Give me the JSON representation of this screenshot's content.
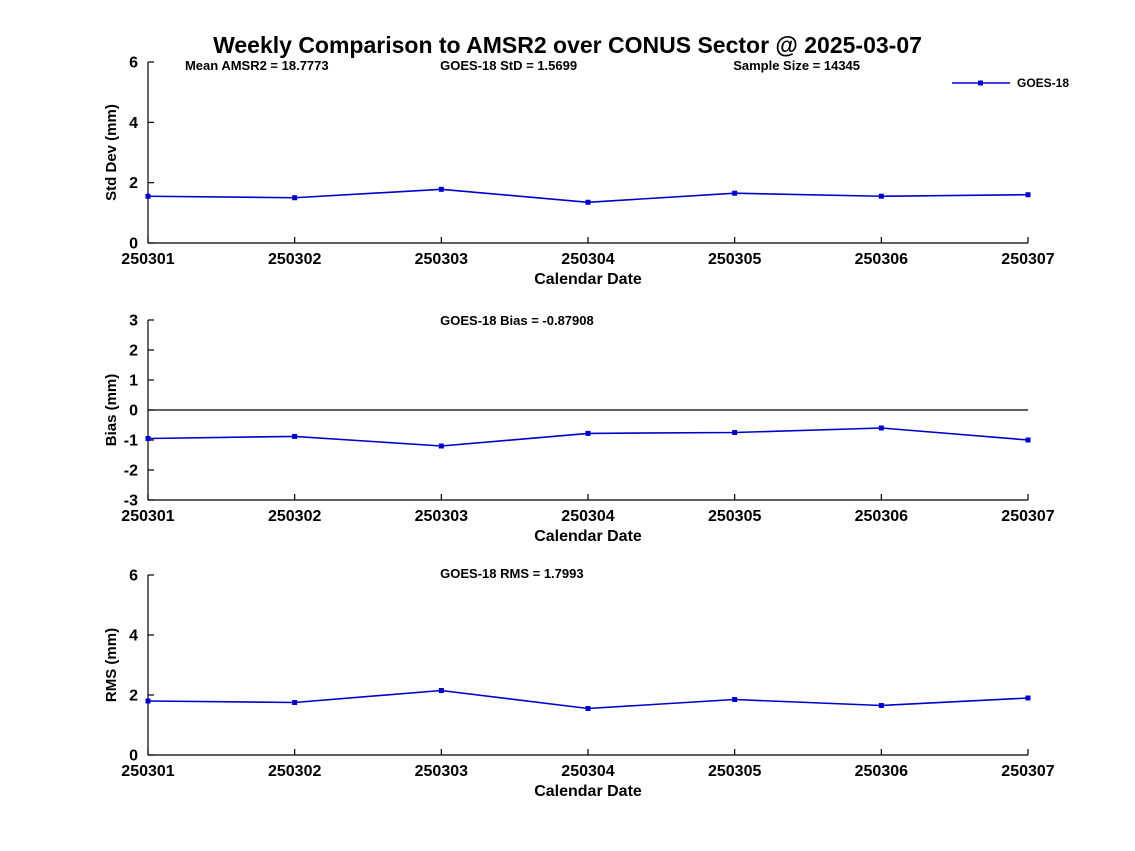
{
  "page_title": "Weekly Comparison to AMSR2 over CONUS Sector @ 2025-03-07",
  "legend": {
    "label": "GOES-18"
  },
  "colors": {
    "series": "#0000cd",
    "axis": "#000000"
  },
  "chart_data": [
    {
      "type": "line",
      "id": "stddev",
      "ylabel": "Std Dev (mm)",
      "xlabel": "Calendar Date",
      "categories": [
        "250301",
        "250302",
        "250303",
        "250304",
        "250305",
        "250306",
        "250307"
      ],
      "series": [
        {
          "name": "GOES-18",
          "values": [
            1.55,
            1.5,
            1.78,
            1.35,
            1.65,
            1.55,
            1.6
          ]
        }
      ],
      "ylim": [
        0,
        6
      ],
      "yticks": [
        0,
        2,
        4,
        6
      ],
      "grid": false,
      "legend_position": "top-right",
      "annotations": [
        "Mean AMSR2 = 18.7773",
        "GOES-18 StD = 1.5699",
        "Sample Size = 14345"
      ]
    },
    {
      "type": "line",
      "id": "bias",
      "ylabel": "Bias (mm)",
      "xlabel": "Calendar Date",
      "categories": [
        "250301",
        "250302",
        "250303",
        "250304",
        "250305",
        "250306",
        "250307"
      ],
      "series": [
        {
          "name": "GOES-18",
          "values": [
            -0.95,
            -0.88,
            -1.2,
            -0.78,
            -0.75,
            -0.6,
            -1.0
          ]
        }
      ],
      "ylim": [
        -3,
        3
      ],
      "yticks": [
        -3,
        -2,
        -1,
        0,
        1,
        2,
        3
      ],
      "zero_line": true,
      "grid": false,
      "annotations": [
        "GOES-18 Bias = -0.87908"
      ]
    },
    {
      "type": "line",
      "id": "rms",
      "ylabel": "RMS (mm)",
      "xlabel": "Calendar Date",
      "categories": [
        "250301",
        "250302",
        "250303",
        "250304",
        "250305",
        "250306",
        "250307"
      ],
      "series": [
        {
          "name": "GOES-18",
          "values": [
            1.8,
            1.75,
            2.15,
            1.55,
            1.85,
            1.65,
            1.9
          ]
        }
      ],
      "ylim": [
        0,
        6
      ],
      "yticks": [
        0,
        2,
        4,
        6
      ],
      "grid": false,
      "annotations": [
        "GOES-18 RMS = 1.7993"
      ]
    }
  ]
}
